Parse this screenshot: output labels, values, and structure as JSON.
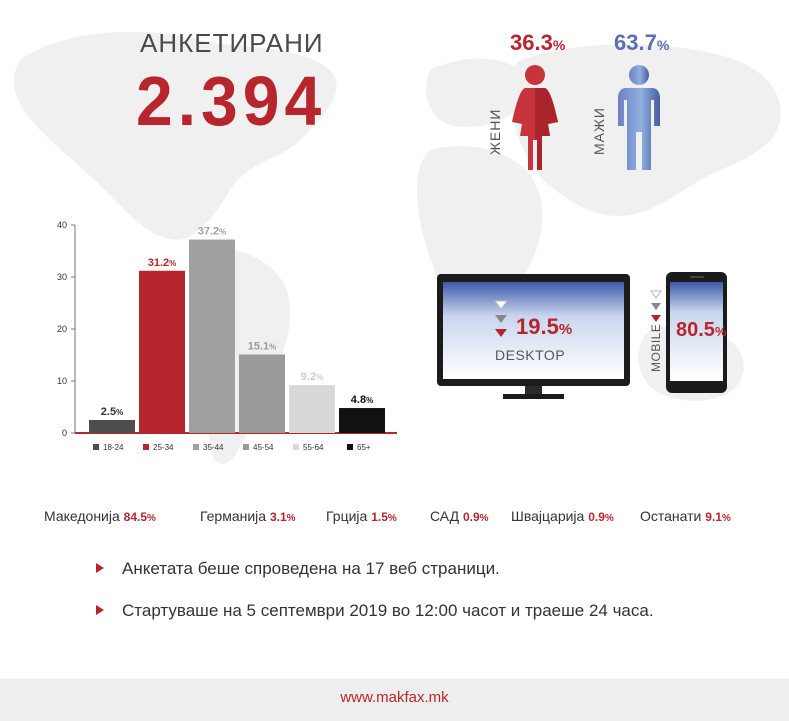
{
  "header": {
    "title": "АНКЕТИРАНИ",
    "total": "2.394"
  },
  "gender": {
    "women": {
      "label": "ЖЕНИ",
      "value": "36.3",
      "unit": "%",
      "color": "#b8262d"
    },
    "men": {
      "label": "МАЖИ",
      "value": "63.7",
      "unit": "%",
      "color": "#5b6fb4"
    }
  },
  "chart_data": {
    "type": "bar",
    "categories": [
      "18-24",
      "25-34",
      "35-44",
      "45-54",
      "55-64",
      "65+"
    ],
    "values": [
      2.5,
      31.2,
      37.2,
      15.1,
      9.2,
      4.8
    ],
    "value_labels": [
      "2.5",
      "31.2",
      "37.2",
      "15.1",
      "9.2",
      "4.8"
    ],
    "unit": "%",
    "colors": [
      "#4d4d4d",
      "#b8262d",
      "#a0a0a0",
      "#9a9a9a",
      "#d8d8d8",
      "#111111"
    ],
    "label_colors": [
      "#333333",
      "#b8262d",
      "#a0a0a0",
      "#9a9a9a",
      "#cccccc",
      "#111111"
    ],
    "yticks": [
      0,
      10,
      20,
      30,
      40
    ],
    "ylim": [
      0,
      40
    ],
    "grid": false,
    "legend": "bottom"
  },
  "devices": {
    "desktop": {
      "label": "DESKTOP",
      "value": "19.5",
      "unit": "%"
    },
    "mobile": {
      "label": "MOBILE",
      "value": "80.5",
      "unit": "%"
    }
  },
  "countries": [
    {
      "name": "Македонија",
      "value": "84.5",
      "unit": "%"
    },
    {
      "name": "Германија",
      "value": "3.1",
      "unit": "%"
    },
    {
      "name": "Грција",
      "value": "1.5",
      "unit": "%"
    },
    {
      "name": "САД",
      "value": "0.9",
      "unit": "%"
    },
    {
      "name": "Швајцарија",
      "value": "0.9",
      "unit": "%"
    },
    {
      "name": "Останати",
      "value": "9.1",
      "unit": "%"
    }
  ],
  "notes": [
    "Анкетата беше спроведена на 17 веб страници.",
    "Стартуваше на 5 септември 2019 во 12:00 часот и траеше 24 часа."
  ],
  "footer": {
    "link": "www.makfax.mk"
  }
}
